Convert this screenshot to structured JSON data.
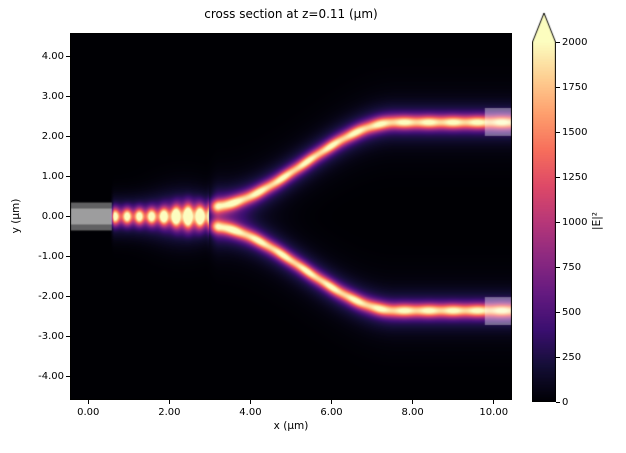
{
  "chart_data": {
    "type": "heatmap",
    "title": "cross section at z=0.11 (μm)",
    "xlabel": "x (μm)",
    "ylabel": "y (μm)",
    "x_range": [
      -0.45,
      10.45
    ],
    "y_range": [
      -4.6,
      4.6
    ],
    "x_ticks": [
      0,
      2,
      4,
      6,
      8,
      10
    ],
    "x_tick_labels": [
      "0.00",
      "2.00",
      "4.00",
      "6.00",
      "8.00",
      "10.00"
    ],
    "y_ticks": [
      4,
      3,
      2,
      1,
      0,
      -1,
      -2,
      -3,
      -4
    ],
    "y_tick_labels": [
      "4.00",
      "3.00",
      "2.00",
      "1.00",
      "0.00",
      "-1.00",
      "-2.00",
      "-3.00",
      "-4.00"
    ],
    "colorbar": {
      "label": "|E|²",
      "ticks": [
        0,
        250,
        500,
        750,
        1000,
        1250,
        1500,
        1750,
        2000
      ],
      "tick_labels": [
        "0",
        "250",
        "500",
        "750",
        "1000",
        "1250",
        "1500",
        "1750",
        "2000"
      ],
      "vmin": 0,
      "vmax": 2000,
      "extend": "max",
      "colormap": "magma",
      "colormap_stops": [
        [
          0.0,
          "#000004"
        ],
        [
          0.1,
          "#140e36"
        ],
        [
          0.2,
          "#3b0f70"
        ],
        [
          0.3,
          "#641a80"
        ],
        [
          0.4,
          "#8c2981"
        ],
        [
          0.5,
          "#b73779"
        ],
        [
          0.6,
          "#de4968"
        ],
        [
          0.7,
          "#f76f5c"
        ],
        [
          0.8,
          "#fe9f6d"
        ],
        [
          0.9,
          "#fecf92"
        ],
        [
          1.0,
          "#fcfdbf"
        ]
      ]
    },
    "field": {
      "description": "Y-branch waveguide splitter |E|^2 field: bright input guide at y=0 with standing-wave fringes, splitting near x=3 into two S-bend arms ending at y=+/-2.36 at the right edge",
      "background_value": 0,
      "peak_value": 2000,
      "overlay_color": "rgba(255,255,255,0.38)",
      "input_waveguide": {
        "x_start": 0.53,
        "x_end": 2.98,
        "y_center": 0,
        "core_sigma": 0.2,
        "fringe_period": 0.3,
        "fringe_phase": 0.66,
        "peak": 2200
      },
      "junction": {
        "x": 2.35,
        "halo_sigma_x": 0.8,
        "halo_sigma_y": 0.72,
        "halo_peak": 240
      },
      "arms": {
        "x_split": 2.88,
        "x_bend_start": 3.0,
        "x_bend_end": 7.6,
        "y_start": 0.25,
        "y_end": 2.36,
        "core_sigma": 0.165,
        "peak": 1600,
        "glow_peak": 400
      },
      "overlays": [
        {
          "name": "input-port",
          "x": [
            -0.45,
            0.58
          ],
          "y": [
            -0.35,
            0.35
          ]
        },
        {
          "name": "input-port-core",
          "x": [
            -0.45,
            0.58
          ],
          "y": [
            -0.2,
            0.2
          ]
        },
        {
          "name": "output-port-top",
          "x": [
            9.78,
            10.45
          ],
          "y": [
            2.02,
            2.72
          ]
        },
        {
          "name": "output-port-bottom",
          "x": [
            9.78,
            10.45
          ],
          "y": [
            -2.72,
            -2.02
          ]
        }
      ]
    }
  }
}
